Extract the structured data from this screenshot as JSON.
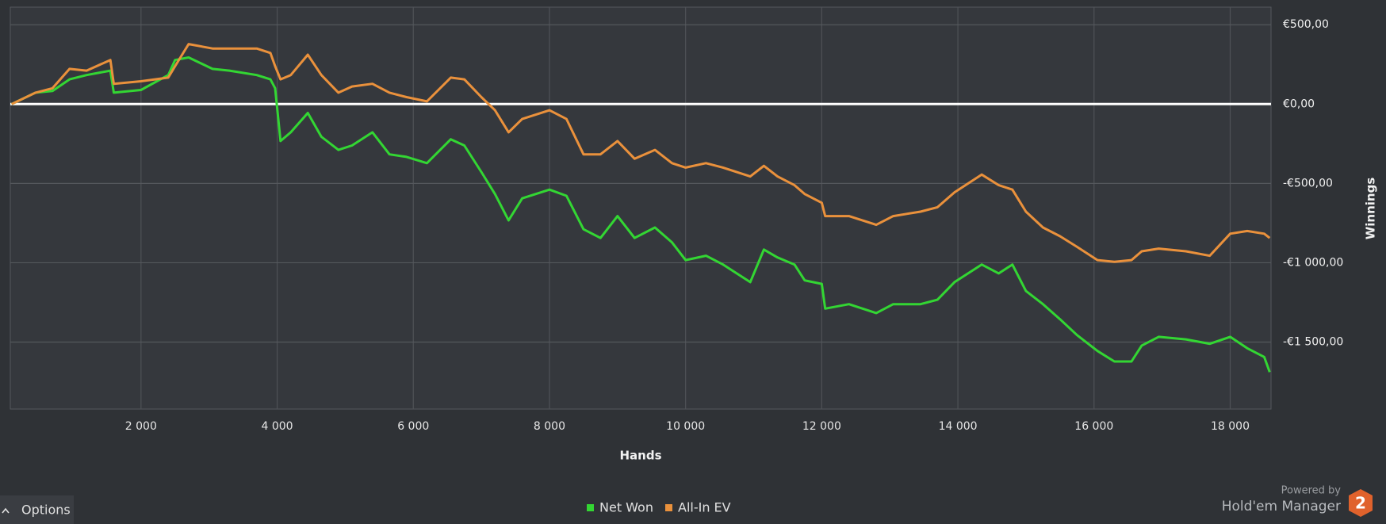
{
  "chart_data": {
    "type": "line",
    "x_label": "Hands",
    "y_label": "Winnings",
    "x": [
      100,
      450,
      700,
      950,
      1200,
      1550,
      1600,
      2000,
      2400,
      2500,
      2700,
      3050,
      3300,
      3700,
      3900,
      3970,
      4050,
      4200,
      4450,
      4650,
      4900,
      5100,
      5400,
      5650,
      5900,
      6200,
      6550,
      6750,
      7000,
      7200,
      7400,
      7600,
      8000,
      8250,
      8500,
      8750,
      9000,
      9250,
      9550,
      9800,
      10000,
      10300,
      10550,
      10950,
      11150,
      11350,
      11600,
      11750,
      12000,
      12050,
      12400,
      12800,
      13050,
      13450,
      13700,
      13950,
      14350,
      14600,
      14800,
      15000,
      15250,
      15500,
      15750,
      16050,
      16300,
      16550,
      16700,
      16950,
      17350,
      17700,
      18000,
      18250,
      18500,
      18580
    ],
    "series": [
      {
        "name": "Net Won",
        "color": "#33d633",
        "values": [
          0,
          72,
          83,
          156,
          183,
          211,
          72,
          89,
          183,
          278,
          294,
          222,
          211,
          183,
          156,
          100,
          -233,
          -178,
          -56,
          -206,
          -289,
          -261,
          -178,
          -317,
          -333,
          -372,
          -222,
          -261,
          -428,
          -567,
          -733,
          -594,
          -539,
          -578,
          -789,
          -844,
          -706,
          -844,
          -778,
          -872,
          -983,
          -956,
          -1011,
          -1122,
          -917,
          -967,
          -1011,
          -1111,
          -1133,
          -1289,
          -1261,
          -1317,
          -1261,
          -1261,
          -1233,
          -1122,
          -1011,
          -1067,
          -1011,
          -1178,
          -1261,
          -1356,
          -1456,
          -1556,
          -1622,
          -1622,
          -1522,
          -1467,
          -1483,
          -1511,
          -1467,
          -1539,
          -1594,
          -1689
        ]
      },
      {
        "name": "All-In EV",
        "color": "#ea913c",
        "values": [
          0,
          72,
          100,
          222,
          211,
          278,
          128,
          144,
          167,
          239,
          378,
          350,
          350,
          350,
          322,
          239,
          156,
          183,
          311,
          183,
          72,
          111,
          128,
          72,
          44,
          17,
          167,
          156,
          44,
          -39,
          -178,
          -94,
          -39,
          -94,
          -317,
          -317,
          -233,
          -344,
          -289,
          -372,
          -400,
          -372,
          -400,
          -456,
          -389,
          -456,
          -511,
          -567,
          -622,
          -706,
          -706,
          -761,
          -706,
          -678,
          -650,
          -556,
          -444,
          -511,
          -539,
          -678,
          -778,
          -833,
          -900,
          -983,
          -994,
          -983,
          -928,
          -911,
          -928,
          -956,
          -817,
          -800,
          -817,
          -844
        ]
      }
    ],
    "xlim": [
      80,
      18600
    ],
    "ylim": [
      -1922,
      611
    ],
    "xticks": [
      {
        "value": 2000,
        "label": "2 000"
      },
      {
        "value": 4000,
        "label": "4 000"
      },
      {
        "value": 6000,
        "label": "6 000"
      },
      {
        "value": 8000,
        "label": "8 000"
      },
      {
        "value": 10000,
        "label": "10 000"
      },
      {
        "value": 12000,
        "label": "12 000"
      },
      {
        "value": 14000,
        "label": "14 000"
      },
      {
        "value": 16000,
        "label": "16 000"
      },
      {
        "value": 18000,
        "label": "18 000"
      }
    ],
    "yticks": [
      {
        "value": 500,
        "label": "€500,00"
      },
      {
        "value": 0,
        "label": "€0,00"
      },
      {
        "value": -500,
        "label": "-€500,00"
      },
      {
        "value": -1000,
        "label": "-€1 000,00"
      },
      {
        "value": -1500,
        "label": "-€1 500,00"
      }
    ],
    "y_axis_side": "right",
    "grid": true,
    "zero_line": true,
    "legend": "bottom"
  },
  "ui": {
    "options": "Options",
    "powered_by": "Powered by",
    "brand": "Hold'em Manager",
    "logo": "2"
  }
}
